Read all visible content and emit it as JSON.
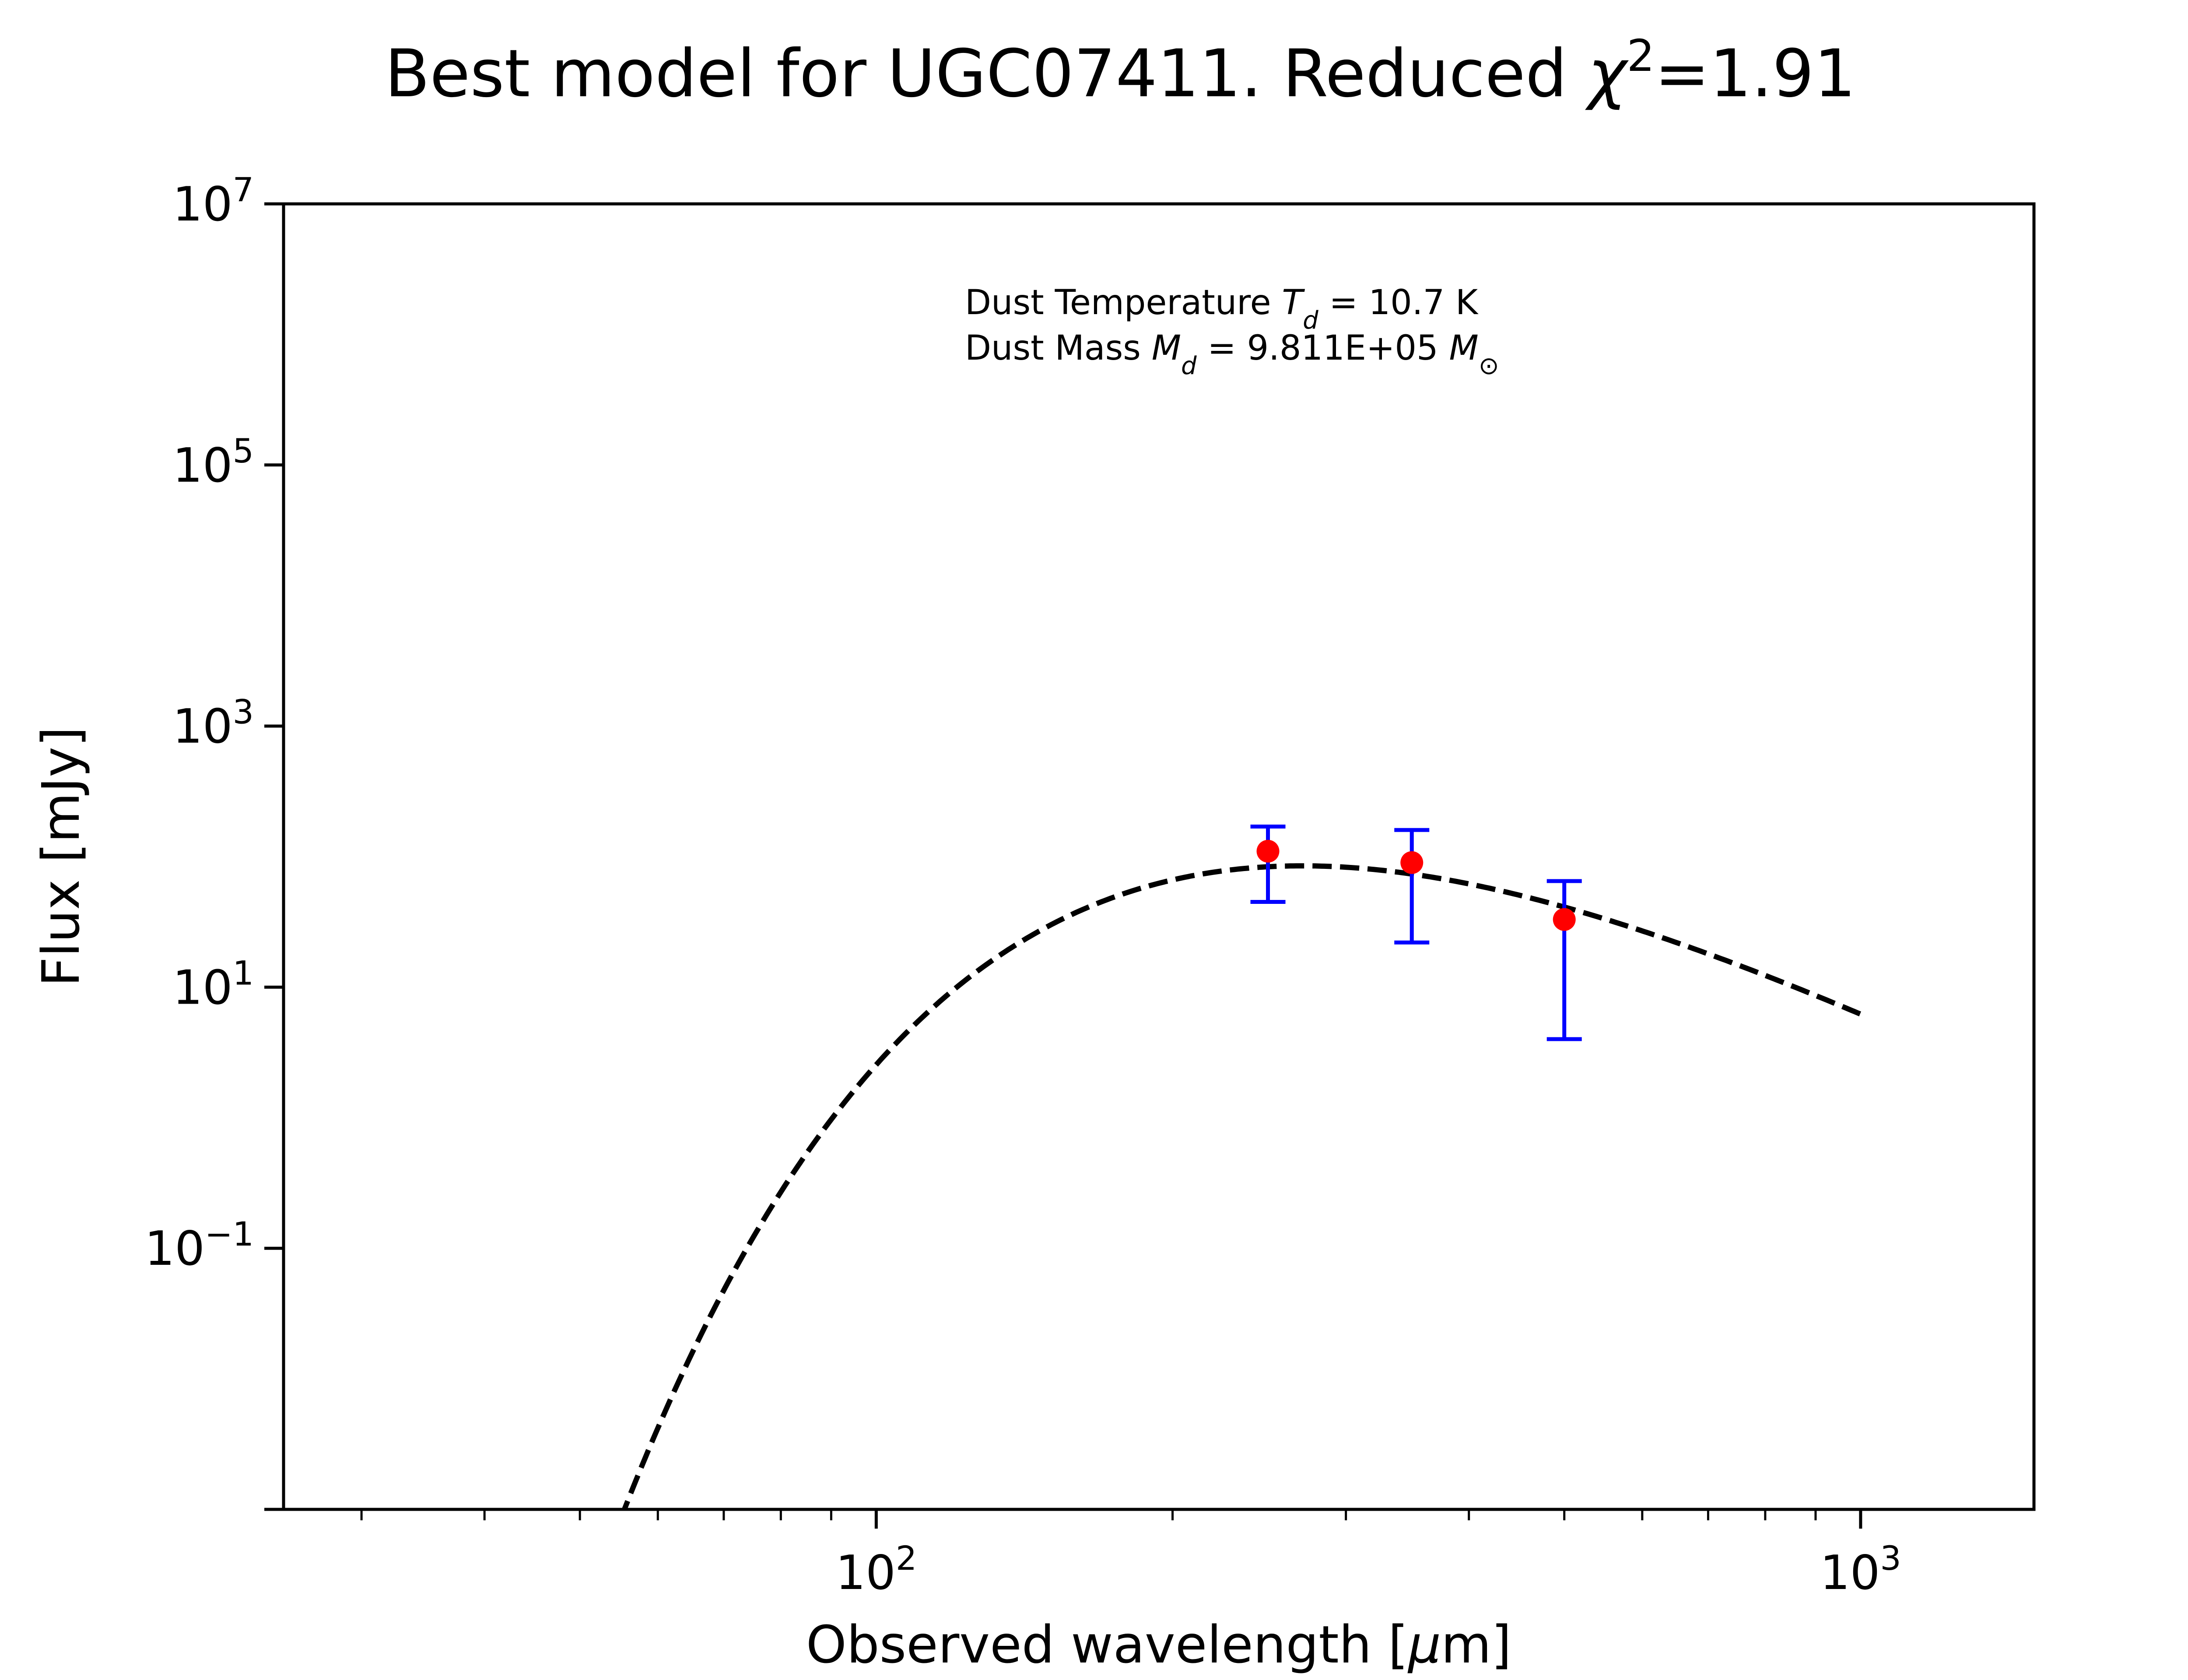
{
  "chart_data": {
    "type": "scatter",
    "title": {
      "prefix": "Best model for UGC07411. Reduced ",
      "symbol": "χ",
      "superscript": "2",
      "suffix": "=1.91"
    },
    "xlabel": {
      "prefix": "Observed wavelength [",
      "symbol": "μ",
      "suffix": "m]"
    },
    "ylabel": "Flux [mJy]",
    "x_scale": "log",
    "y_scale": "log",
    "xlim": [
      25,
      1500
    ],
    "ylim": [
      0.001,
      10000000
    ],
    "grid": false,
    "legend": "none",
    "x_ticks": [
      {
        "value": 100,
        "base": "10",
        "exp": "2"
      },
      {
        "value": 1000,
        "base": "10",
        "exp": "3"
      }
    ],
    "y_ticks": [
      {
        "value": 0.1,
        "base": "10",
        "exp": "−1"
      },
      {
        "value": 10,
        "base": "10",
        "exp": "1"
      },
      {
        "value": 1000,
        "base": "10",
        "exp": "3"
      },
      {
        "value": 100000,
        "base": "10",
        "exp": "5"
      },
      {
        "value": 10000000,
        "base": "10",
        "exp": "7"
      }
    ],
    "annotations": {
      "line1": {
        "prefix": "Dust Temperature ",
        "symbol": "T",
        "subscript": "d",
        "suffix": " = 10.7 K"
      },
      "line2": {
        "prefix": "Dust Mass ",
        "symbol": "M",
        "subscript": "d",
        "middle": " = 9.811E+05 ",
        "unit_symbol": "M",
        "unit_subscript": "⊙"
      }
    },
    "model": {
      "type": "modified_blackbody",
      "temperature_K": 10.7,
      "peak_flux_mJy": 85,
      "x_range": [
        55,
        1000
      ],
      "color": "#000000",
      "style": "dashed"
    },
    "observations": {
      "color": "#ff0000",
      "errorbar_color": "#0000ff",
      "points": [
        {
          "x": 250,
          "y": 110,
          "yerr_low": 45,
          "yerr_high": 170
        },
        {
          "x": 350,
          "y": 90,
          "yerr_low": 22,
          "yerr_high": 160
        },
        {
          "x": 500,
          "y": 33,
          "yerr_low": 4,
          "yerr_high": 65
        }
      ]
    }
  }
}
